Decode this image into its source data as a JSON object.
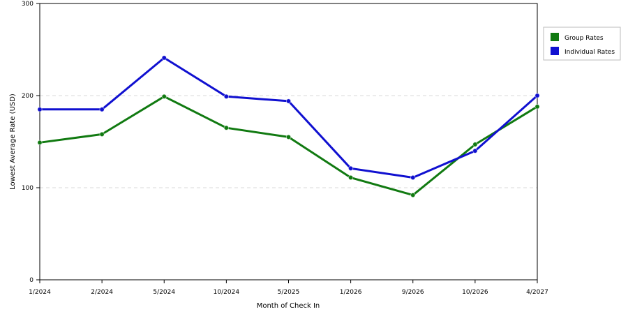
{
  "chart_data": {
    "type": "line",
    "title": "",
    "xlabel": "Month of Check In",
    "ylabel": "Lowest Average Rate (USD)",
    "categories": [
      "1/2024",
      "2/2024",
      "5/2024",
      "10/2024",
      "5/2025",
      "1/2026",
      "9/2026",
      "10/2026",
      "4/2027"
    ],
    "ylim": [
      0,
      300
    ],
    "yticks": [
      0,
      100,
      200,
      300
    ],
    "grid": "horizontal dashed at 100 and 200",
    "legend_position": "right",
    "series": [
      {
        "name": "Group Rates",
        "color": "#117a11",
        "values": [
          149,
          158,
          199,
          165,
          155,
          111,
          92,
          147,
          188
        ]
      },
      {
        "name": "Individual Rates",
        "color": "#1010d0",
        "values": [
          185,
          185,
          241,
          199,
          194,
          121,
          111,
          140,
          200
        ]
      }
    ]
  }
}
